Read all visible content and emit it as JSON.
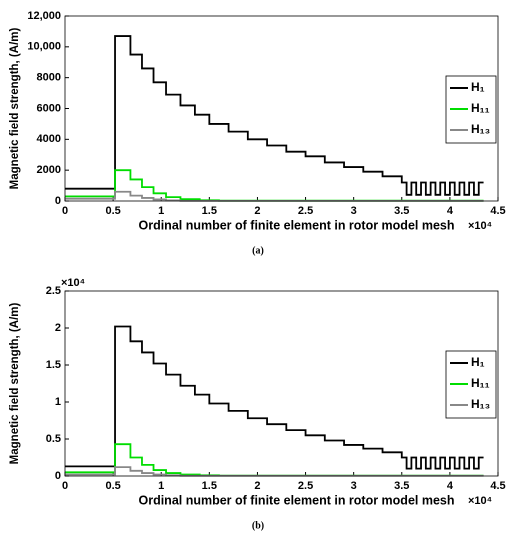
{
  "chart_data": [
    {
      "type": "line",
      "drawstyle": "steps-post",
      "caption": "(a)",
      "ylabel": "Magnetic field strength, (A/m)",
      "xlabel": "Ordinal number of finite element in rotor model mesh",
      "x_multiplier": "×10⁴",
      "xlim": [
        0,
        4.5
      ],
      "xticks": [
        0,
        0.5,
        1,
        1.5,
        2,
        2.5,
        3,
        3.5,
        4,
        4.5
      ],
      "ylim": [
        0,
        12000
      ],
      "yticks": [
        0,
        2000,
        4000,
        6000,
        8000,
        {
          "value": 10000,
          "label": "10,000"
        },
        {
          "value": 12000,
          "label": "12,000"
        }
      ],
      "grid": false,
      "legend": "right",
      "series": [
        {
          "name": "H₁",
          "color": "#000000",
          "x": [
            0,
            0.52,
            0.68,
            0.8,
            0.92,
            1.05,
            1.2,
            1.35,
            1.5,
            1.7,
            1.9,
            2.1,
            2.3,
            2.5,
            2.7,
            2.9,
            3.1,
            3.3,
            3.5,
            3.55,
            3.6,
            3.65,
            3.7,
            3.75,
            3.8,
            3.85,
            3.9,
            3.95,
            4.0,
            4.05,
            4.1,
            4.15,
            4.2,
            4.25,
            4.3,
            4.35
          ],
          "values": [
            800,
            10700,
            9500,
            8600,
            7700,
            6900,
            6200,
            5600,
            5000,
            4500,
            4000,
            3600,
            3200,
            2900,
            2500,
            2200,
            1900,
            1600,
            1200,
            400,
            1200,
            400,
            1200,
            400,
            1200,
            400,
            1200,
            400,
            1200,
            400,
            1200,
            400,
            1200,
            400,
            1200,
            1200
          ]
        },
        {
          "name": "H₁₁",
          "color": "#00dd00",
          "x": [
            0,
            0.52,
            0.68,
            0.8,
            0.92,
            1.05,
            1.2,
            1.4,
            1.6,
            4.35
          ],
          "values": [
            300,
            2000,
            1400,
            900,
            500,
            250,
            120,
            50,
            20,
            20
          ]
        },
        {
          "name": "H₁₃",
          "color": "#888888",
          "x": [
            0,
            0.52,
            0.68,
            0.8,
            0.92,
            1.05,
            1.2,
            4.35
          ],
          "values": [
            150,
            600,
            350,
            200,
            100,
            40,
            10,
            10
          ]
        }
      ]
    },
    {
      "type": "line",
      "drawstyle": "steps-post",
      "caption": "(b)",
      "ylabel": "Magnetic field strength, (A/m)",
      "xlabel": "Ordinal number of finite element in rotor model mesh",
      "x_multiplier": "×10⁴",
      "y_multiplier": "×10⁴",
      "xlim": [
        0,
        4.5
      ],
      "xticks": [
        0,
        0.5,
        1,
        1.5,
        2,
        2.5,
        3,
        3.5,
        4,
        4.5
      ],
      "ylim": [
        0,
        2.5
      ],
      "yticks": [
        0,
        0.5,
        1,
        1.5,
        2,
        2.5
      ],
      "grid": false,
      "legend": "right",
      "series": [
        {
          "name": "H₁",
          "color": "#000000",
          "x": [
            0,
            0.52,
            0.68,
            0.8,
            0.92,
            1.05,
            1.2,
            1.35,
            1.5,
            1.7,
            1.9,
            2.1,
            2.3,
            2.5,
            2.7,
            2.9,
            3.1,
            3.3,
            3.5,
            3.55,
            3.6,
            3.65,
            3.7,
            3.75,
            3.8,
            3.85,
            3.9,
            3.95,
            4.0,
            4.05,
            4.1,
            4.15,
            4.2,
            4.25,
            4.3,
            4.35
          ],
          "values": [
            0.13,
            2.02,
            1.82,
            1.67,
            1.52,
            1.37,
            1.22,
            1.1,
            0.98,
            0.88,
            0.78,
            0.7,
            0.62,
            0.55,
            0.48,
            0.42,
            0.37,
            0.32,
            0.25,
            0.1,
            0.25,
            0.1,
            0.25,
            0.1,
            0.25,
            0.1,
            0.25,
            0.1,
            0.25,
            0.1,
            0.25,
            0.1,
            0.25,
            0.1,
            0.25,
            0.25
          ]
        },
        {
          "name": "H₁₁",
          "color": "#00dd00",
          "x": [
            0,
            0.52,
            0.68,
            0.8,
            0.92,
            1.05,
            1.2,
            1.4,
            1.6,
            4.35
          ],
          "values": [
            0.05,
            0.43,
            0.25,
            0.15,
            0.08,
            0.04,
            0.02,
            0.01,
            0.005,
            0.005
          ]
        },
        {
          "name": "H₁₃",
          "color": "#888888",
          "x": [
            0,
            0.52,
            0.68,
            0.8,
            0.92,
            1.05,
            1.2,
            4.35
          ],
          "values": [
            0.02,
            0.12,
            0.07,
            0.04,
            0.02,
            0.01,
            0.003,
            0.003
          ]
        }
      ]
    }
  ]
}
